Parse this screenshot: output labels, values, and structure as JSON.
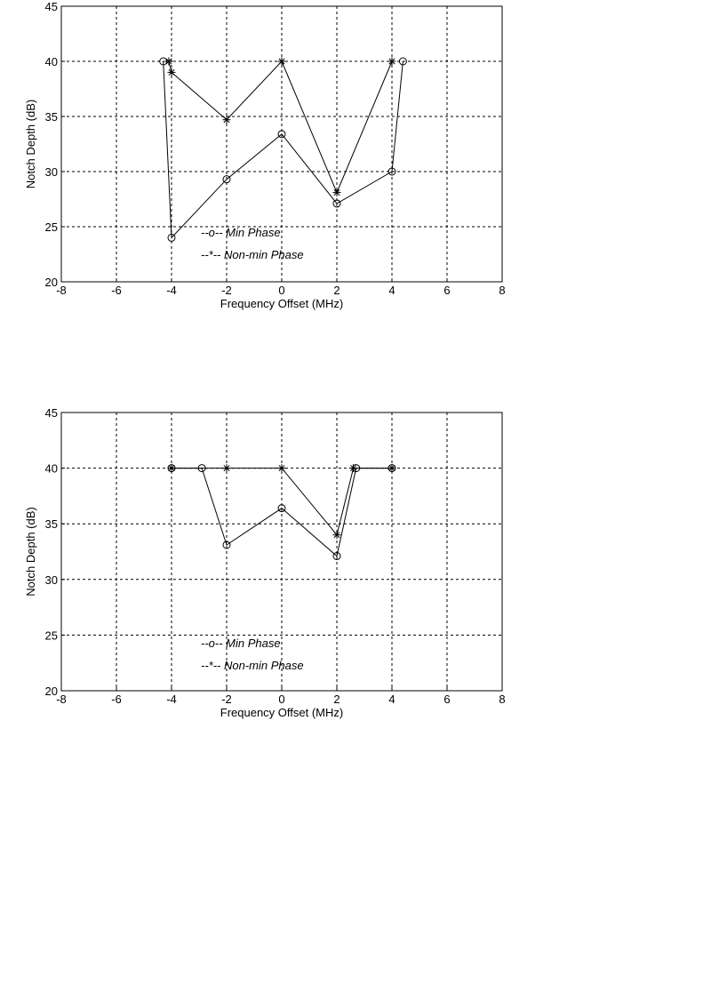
{
  "chart_data": [
    {
      "type": "line",
      "xlabel": "Frequency Offset (MHz)",
      "ylabel": "Notch Depth (dB)",
      "xlim": [
        -8,
        8
      ],
      "ylim": [
        20,
        45
      ],
      "xticks": [
        "-8",
        "-6",
        "-4",
        "-2",
        "0",
        "2",
        "4",
        "6",
        "8"
      ],
      "yticks": [
        "20",
        "25",
        "30",
        "35",
        "40",
        "45"
      ],
      "grid": true,
      "legend_position": "bottom-center",
      "series": [
        {
          "name": "--o-- Min Phase",
          "marker": "circle",
          "x": [
            -4.3,
            -4,
            -2,
            0,
            2,
            4,
            4.4
          ],
          "y": [
            40,
            24,
            29.3,
            33.4,
            27.1,
            30,
            40
          ]
        },
        {
          "name": "--*-- Non-min Phase",
          "marker": "star",
          "x": [
            -4.1,
            -4,
            -2,
            0,
            2,
            4
          ],
          "y": [
            40,
            39,
            34.7,
            40,
            28.1,
            40
          ]
        }
      ]
    },
    {
      "type": "line",
      "xlabel": "Frequency Offset (MHz)",
      "ylabel": "Notch Depth (dB)",
      "xlim": [
        -8,
        8
      ],
      "ylim": [
        20,
        45
      ],
      "xticks": [
        "-8",
        "-6",
        "-4",
        "-2",
        "0",
        "2",
        "4",
        "6",
        "8"
      ],
      "yticks": [
        "20",
        "25",
        "30",
        "35",
        "40",
        "45"
      ],
      "grid": true,
      "legend_position": "bottom-center",
      "series": [
        {
          "name": "--o-- Min Phase",
          "marker": "circle",
          "x": [
            -4,
            -2.9,
            -2,
            0,
            2,
            2.7,
            4
          ],
          "y": [
            40,
            40,
            33.1,
            36.4,
            32.1,
            40,
            40
          ]
        },
        {
          "name": "--*-- Non-min Phase",
          "marker": "star",
          "x": [
            -4,
            -2,
            0,
            2,
            2.6,
            4
          ],
          "y": [
            40,
            40,
            40,
            34,
            40,
            40
          ]
        }
      ]
    }
  ]
}
